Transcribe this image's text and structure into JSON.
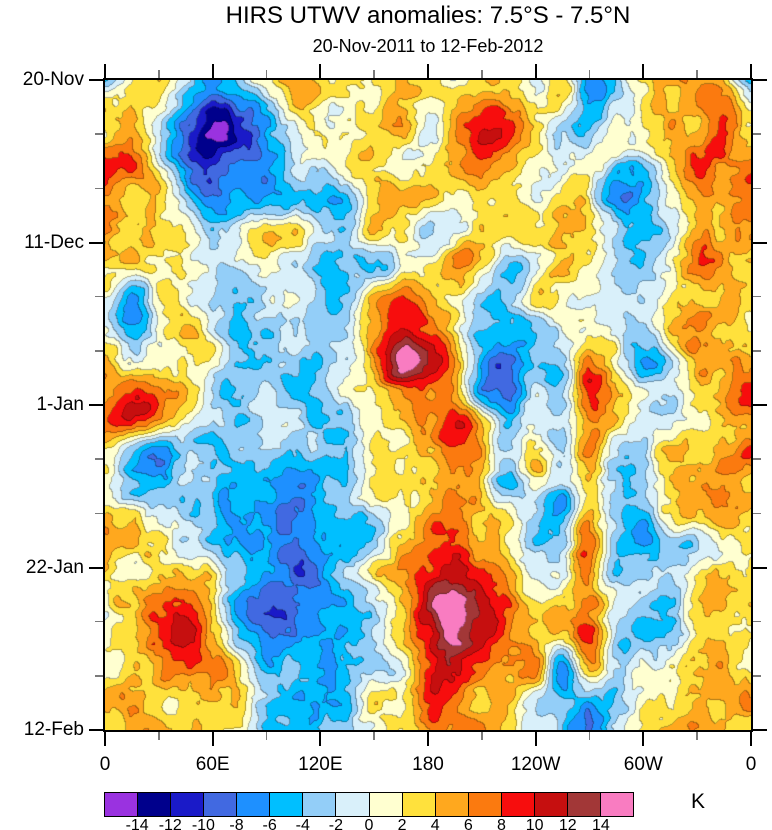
{
  "title": "HIRS UTWV anomalies: 7.5°S - 7.5°N",
  "subtitle": "20-Nov-2011 to 12-Feb-2012",
  "colorbar": {
    "unit": "K",
    "tick_labels": [
      "-14",
      "-12",
      "-10",
      "-8",
      "-6",
      "-4",
      "-2",
      "0",
      "2",
      "4",
      "6",
      "8",
      "10",
      "12",
      "14"
    ]
  },
  "chart_data": {
    "type": "heatmap",
    "title": "HIRS UTWV anomalies: 7.5°S - 7.5°N",
    "subtitle": "20-Nov-2011 to 12-Feb-2012",
    "unit": "K",
    "x_axis": {
      "label_ticks": [
        "0",
        "60E",
        "120E",
        "180",
        "120W",
        "60W",
        "0"
      ],
      "range_deg": [
        0,
        360
      ],
      "major_step_deg": 60,
      "minor_step_deg": 30
    },
    "y_axis": {
      "label_ticks": [
        "20-Nov",
        "11-Dec",
        "1-Jan",
        "22-Jan",
        "12-Feb"
      ],
      "range_days": [
        0,
        84
      ],
      "major_step_days": 21,
      "minor_step_days": 7
    },
    "levels": [
      -14,
      -12,
      -10,
      -8,
      -6,
      -4,
      -2,
      0,
      2,
      4,
      6,
      8,
      10,
      12,
      14
    ],
    "palette": [
      "#9A32E0",
      "#00008C",
      "#1A1AC8",
      "#4169E1",
      "#1E90FF",
      "#00BFFF",
      "#93CEF8",
      "#D9F0FA",
      "#FFFFD0",
      "#FFE13C",
      "#FFA81E",
      "#FB7A0F",
      "#F70D0D",
      "#C60F0F",
      "#A23737",
      "#F97CC1"
    ],
    "grid_lon_step_deg": 15,
    "grid_time_step_days": 4,
    "grid": [
      [
        -5,
        3,
        3,
        -3,
        -8,
        -4,
        2,
        4,
        3,
        2,
        3,
        5,
        2,
        3,
        5,
        4,
        1,
        2,
        -5,
        -2,
        1,
        4,
        4,
        4,
        -5
      ],
      [
        3,
        4,
        1,
        -7,
        -12,
        -9,
        -4,
        1,
        2,
        1,
        2,
        4,
        1,
        5,
        8,
        6,
        2,
        1,
        -6,
        -1,
        2,
        4,
        5,
        8,
        3
      ],
      [
        4,
        5,
        -1,
        -8,
        -13,
        -10,
        -5,
        -2,
        1,
        1,
        2,
        3,
        1,
        6,
        9,
        7,
        3,
        -2,
        -3,
        0,
        2,
        3,
        5,
        9,
        4
      ],
      [
        9,
        7,
        2,
        -6,
        -10,
        -8,
        -6,
        -3,
        -2,
        2,
        3,
        2,
        2,
        4,
        7,
        5,
        2,
        -1,
        1,
        -4,
        -3,
        2,
        7,
        5,
        9
      ],
      [
        6,
        5,
        3,
        -2,
        -6,
        -5,
        -4,
        -4,
        -4,
        -5,
        2,
        3,
        3,
        2,
        4,
        3,
        1,
        2,
        2,
        -5,
        -4,
        1,
        3,
        4,
        6
      ],
      [
        5,
        3,
        4,
        2,
        -2,
        1,
        3,
        2,
        -2,
        -3,
        2,
        1,
        -2,
        2,
        5,
        4,
        1,
        3,
        2,
        -3,
        -5,
        -2,
        4,
        4,
        5
      ],
      [
        4,
        2,
        3,
        1,
        -1,
        -2,
        -1,
        -2,
        -3,
        -2,
        -4,
        -2,
        3,
        5,
        3,
        -2,
        1,
        4,
        2,
        -2,
        -4,
        1,
        6,
        5,
        4
      ],
      [
        2,
        -8,
        1,
        2,
        -2,
        -3,
        -2,
        -1,
        -2,
        -3,
        2,
        6,
        4,
        2,
        -3,
        -4,
        2,
        3,
        1,
        -2,
        -3,
        2,
        4,
        6,
        2
      ],
      [
        1,
        -4,
        2,
        3,
        -1,
        -4,
        -3,
        -2,
        -3,
        -2,
        4,
        10,
        8,
        3,
        -4,
        -6,
        -2,
        2,
        2,
        -1,
        -2,
        3,
        5,
        2,
        1
      ],
      [
        5,
        1,
        3,
        2,
        1,
        -3,
        -4,
        -3,
        -4,
        -1,
        7,
        14,
        10,
        5,
        -6,
        -7,
        -3,
        -4,
        5,
        2,
        -4,
        -4,
        4,
        3,
        4
      ],
      [
        4,
        6,
        6,
        3,
        -2,
        -3,
        -2,
        -3,
        -2,
        2,
        4,
        7,
        9,
        6,
        -7,
        -8,
        -3,
        -4,
        8,
        3,
        -2,
        -2,
        2,
        4,
        8
      ],
      [
        6,
        9,
        7,
        2,
        -2,
        -4,
        -2,
        -3,
        -4,
        -2,
        2,
        4,
        6,
        8,
        3,
        -4,
        -2,
        -3,
        5,
        2,
        -3,
        -2,
        3,
        5,
        6
      ],
      [
        2,
        -5,
        -5,
        -2,
        -4,
        -3,
        -2,
        -4,
        -3,
        -2,
        3,
        2,
        4,
        6,
        4,
        -2,
        3,
        -2,
        5,
        -2,
        -3,
        3,
        5,
        6,
        8
      ],
      [
        2,
        -5,
        -4,
        -2,
        -3,
        -4,
        -5,
        -6,
        -5,
        -3,
        2,
        3,
        3,
        5,
        2,
        -3,
        2,
        -2,
        5,
        -3,
        -3,
        3,
        6,
        7,
        3
      ],
      [
        3,
        2,
        -2,
        -3,
        -4,
        -5,
        -7,
        -8,
        -6,
        -4,
        -2,
        2,
        4,
        6,
        4,
        2,
        -2,
        -5,
        5,
        -2,
        -5,
        3,
        5,
        7,
        3
      ],
      [
        4,
        3,
        2,
        -2,
        -3,
        -6,
        -8,
        -9,
        -7,
        -5,
        -3,
        4,
        6,
        9,
        6,
        2,
        -3,
        -4,
        8,
        -2,
        -5,
        -3,
        -2,
        3,
        4
      ],
      [
        3,
        2,
        3,
        4,
        2,
        -4,
        -7,
        -8,
        -8,
        -4,
        2,
        4,
        8,
        12,
        9,
        4,
        -2,
        -2,
        6,
        -3,
        -4,
        -2,
        2,
        4,
        3
      ],
      [
        2,
        3,
        6,
        8,
        3,
        -5,
        -11,
        -9,
        -6,
        -4,
        -2,
        3,
        11,
        16,
        13,
        7,
        3,
        4,
        5,
        -2,
        -4,
        -3,
        2,
        3,
        2
      ],
      [
        3,
        4,
        8,
        11,
        5,
        -4,
        -8,
        -7,
        -5,
        -4,
        -2,
        2,
        9,
        15,
        11,
        5,
        6,
        3,
        8,
        -3,
        -3,
        -2,
        3,
        4,
        3
      ],
      [
        2,
        4,
        5,
        8,
        7,
        2,
        -4,
        -4,
        -5,
        -3,
        -2,
        2,
        8,
        10,
        8,
        4,
        5,
        -7,
        7,
        -2,
        -2,
        2,
        4,
        5,
        2
      ],
      [
        3,
        7,
        5,
        2,
        4,
        3,
        -2,
        -4,
        -4,
        -4,
        2,
        3,
        7,
        7,
        3,
        2,
        -2,
        -4,
        -5,
        -2,
        2,
        3,
        5,
        5,
        4
      ],
      [
        2,
        5,
        4,
        3,
        3,
        2,
        -2,
        -3,
        -3,
        -2,
        1,
        2,
        5,
        6,
        4,
        2,
        -3,
        -3,
        -9,
        -3,
        2,
        4,
        6,
        4,
        2
      ]
    ]
  }
}
